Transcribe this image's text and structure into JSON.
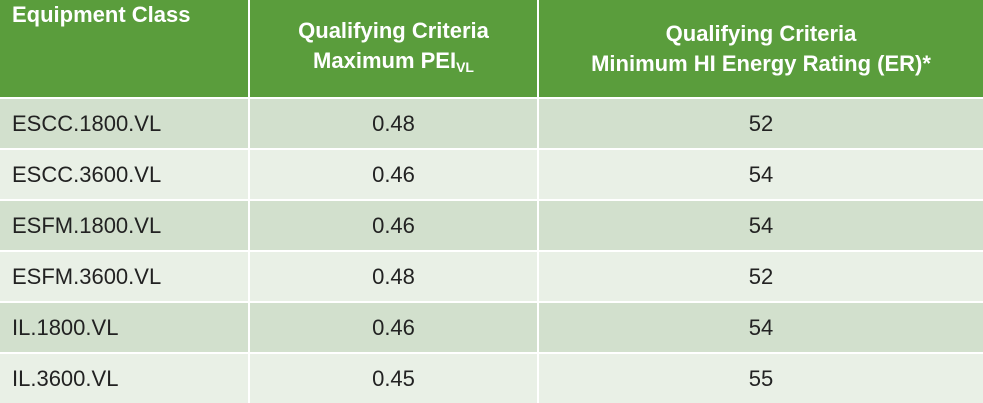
{
  "table": {
    "header": [
      {
        "line1": "Equipment Class"
      },
      {
        "line1": "Qualifying Criteria",
        "line2": "Maximum PEI",
        "line2_sub": "VL"
      },
      {
        "line1": "Qualifying Criteria",
        "line2": "Minimum HI Energy Rating (ER)*"
      }
    ],
    "rows": [
      [
        "ESCC.1800.VL",
        "0.48",
        "52"
      ],
      [
        "ESCC.3600.VL",
        "0.46",
        "54"
      ],
      [
        "ESFM.1800.VL",
        "0.46",
        "54"
      ],
      [
        "ESFM.3600.VL",
        "0.48",
        "52"
      ],
      [
        "IL.1800.VL",
        "0.46",
        "54"
      ],
      [
        "IL.3600.VL",
        "0.45",
        "55"
      ]
    ]
  }
}
